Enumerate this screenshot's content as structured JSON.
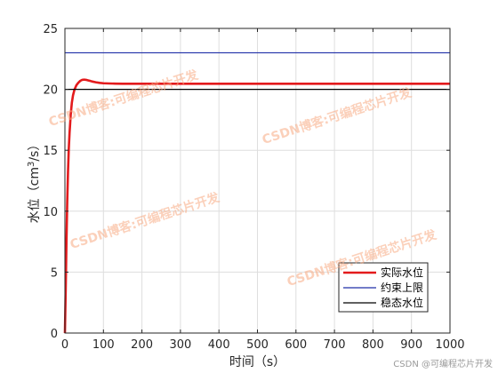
{
  "chart_data": {
    "type": "line",
    "xlabel": "时间（s）",
    "ylabel_prefix": "水位（cm",
    "ylabel_sup": "3",
    "ylabel_suffix": "/s）",
    "xlim": [
      0,
      1000
    ],
    "ylim": [
      0,
      25
    ],
    "xticks": [
      0,
      100,
      200,
      300,
      400,
      500,
      600,
      700,
      800,
      900,
      1000
    ],
    "yticks": [
      0,
      5,
      10,
      15,
      20,
      25
    ],
    "grid": true,
    "legend_position": "bottom-right",
    "series": [
      {
        "name": "实际水位",
        "color": "#e31a1c",
        "x": [
          0,
          2,
          4,
          6,
          8,
          10,
          12,
          15,
          18,
          21,
          25,
          30,
          35,
          40,
          45,
          50,
          55,
          60,
          65,
          70,
          80,
          90,
          100,
          115,
          130,
          150,
          175,
          200,
          300,
          400,
          500,
          600,
          700,
          800,
          900,
          1000
        ],
        "y": [
          0,
          3.5,
          7.5,
          10.8,
          13.2,
          15.1,
          16.4,
          17.9,
          18.9,
          19.5,
          20.0,
          20.35,
          20.55,
          20.7,
          20.78,
          20.8,
          20.78,
          20.74,
          20.7,
          20.65,
          20.58,
          20.53,
          20.5,
          20.48,
          20.47,
          20.46,
          20.46,
          20.46,
          20.46,
          20.46,
          20.46,
          20.46,
          20.46,
          20.46,
          20.46,
          20.46
        ]
      },
      {
        "name": "约束上限",
        "color": "#1f2fa8",
        "x": [
          0,
          1000
        ],
        "y": [
          23,
          23
        ]
      },
      {
        "name": "稳态水位",
        "color": "#000000",
        "x": [
          0,
          1000
        ],
        "y": [
          20,
          20
        ]
      }
    ]
  },
  "watermarks": [
    "CSDN博客:可编程芯片开发",
    "CSDN博客:可编程芯片开发",
    "CSDN博客:可编程芯片开发",
    "CSDN博客:可编程芯片开发"
  ],
  "credit": "CSDN @可编程芯片开发"
}
